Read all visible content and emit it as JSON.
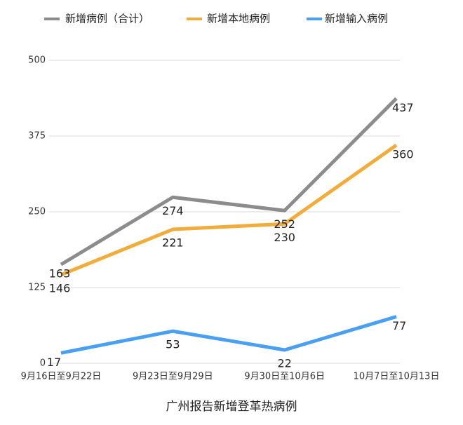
{
  "chart_data": {
    "type": "line",
    "x_label": "广州报告新增登革热病例",
    "categories": [
      "9月16日至9月22日",
      "9月23日至9月29日",
      "9月30日至10月6日",
      "10月7日至10月13日"
    ],
    "series": [
      {
        "name": "新增病例（合计）",
        "color": "#8c8c8c",
        "values": [
          163,
          274,
          252,
          437
        ]
      },
      {
        "name": "新增本地病例",
        "color": "#f0ac3c",
        "values": [
          146,
          221,
          230,
          360
        ]
      },
      {
        "name": "新增输入病例",
        "color": "#4a9ff0",
        "values": [
          17,
          53,
          22,
          77
        ]
      }
    ],
    "ylim": [
      0,
      500
    ],
    "yticks": [
      0,
      125,
      250,
      375,
      500
    ],
    "grid": true
  }
}
